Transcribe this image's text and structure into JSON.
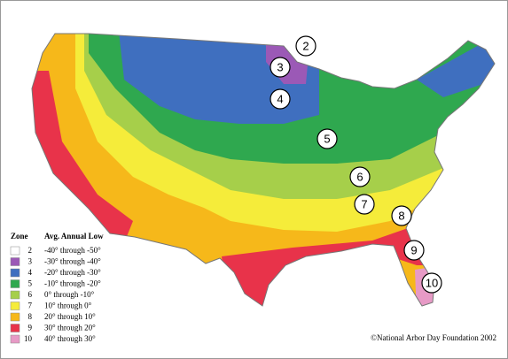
{
  "legend": {
    "header": {
      "zone": "Zone",
      "range": "Avg. Annual Low"
    },
    "rows": [
      {
        "zone": "2",
        "range": "-40° through -50°",
        "color": "#ffffff"
      },
      {
        "zone": "3",
        "range": "-30° through -40°",
        "color": "#9b59b6"
      },
      {
        "zone": "4",
        "range": "-20° through -30°",
        "color": "#3f6fbf"
      },
      {
        "zone": "5",
        "range": "-10° through -20°",
        "color": "#2fa84f"
      },
      {
        "zone": "6",
        "range": "0° through -10°",
        "color": "#a6cf4a"
      },
      {
        "zone": "7",
        "range": "10° through 0°",
        "color": "#f5ec3a"
      },
      {
        "zone": "8",
        "range": "20° through 10°",
        "color": "#f6b81a"
      },
      {
        "zone": "9",
        "range": "30° through 20°",
        "color": "#e8334a"
      },
      {
        "zone": "10",
        "range": "40° through 30°",
        "color": "#e79ac6"
      }
    ]
  },
  "map_labels": [
    "2",
    "3",
    "4",
    "5",
    "6",
    "7",
    "8",
    "9",
    "10"
  ],
  "credit": "©National Arbor Day Foundation 2002"
}
